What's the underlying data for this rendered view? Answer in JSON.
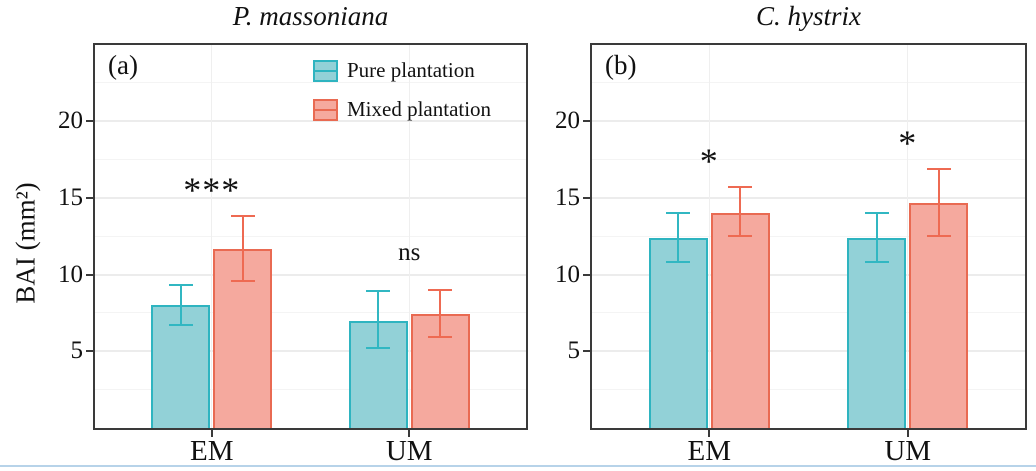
{
  "figure": {
    "ylabel": "BAI (mm²)",
    "colors": {
      "pure_fill": "#92d1d7",
      "pure_stroke": "#2eb4c0",
      "pure_error": "#31b7c2",
      "mixed_fill": "#f5a99e",
      "mixed_stroke": "#e96a52",
      "mixed_error": "#ee6a52",
      "axis": "#3a3a3a",
      "text": "#111111",
      "grid_major": "#ececec",
      "grid_minor": "#f4f4f4",
      "grid_vertical": "#efefef",
      "bottom_rule": "#b7d3e9"
    },
    "legend": {
      "location": "top-right inside panel a",
      "items": [
        {
          "label": "Pure plantation",
          "series": "pure"
        },
        {
          "label": "Mixed plantation",
          "series": "mixed"
        }
      ]
    }
  },
  "chart_data": [
    {
      "type": "bar",
      "panel_label": "(a)",
      "title": "P. massoniana",
      "xlabel": "",
      "ylabel": "BAI (mm²)",
      "ylim": [
        0,
        25
      ],
      "yticks": [
        5,
        10,
        15,
        20
      ],
      "grid": "faint horizontal major+minor gridlines, faint vertical gridline at each category",
      "legend_position": "top-right inside panel",
      "categories": [
        "EM",
        "UM"
      ],
      "series": [
        {
          "name": "Pure plantation",
          "values": [
            8.0,
            7.0
          ],
          "err_low": [
            6.7,
            5.2
          ],
          "err_high": [
            9.3,
            8.9
          ]
        },
        {
          "name": "Mixed plantation",
          "values": [
            11.7,
            7.4
          ],
          "err_low": [
            9.6,
            5.9
          ],
          "err_high": [
            13.8,
            9.0
          ]
        }
      ],
      "significance": [
        "***",
        "ns"
      ]
    },
    {
      "type": "bar",
      "panel_label": "(b)",
      "title": "C. hystrix",
      "xlabel": "",
      "ylabel": "",
      "ylim": [
        0,
        25
      ],
      "yticks": [
        5,
        10,
        15,
        20
      ],
      "grid": "faint horizontal major+minor gridlines, faint vertical gridline at each category",
      "categories": [
        "EM",
        "UM"
      ],
      "series": [
        {
          "name": "Pure plantation",
          "values": [
            12.4,
            12.4
          ],
          "err_low": [
            10.8,
            10.8
          ],
          "err_high": [
            14.0,
            14.0
          ]
        },
        {
          "name": "Mixed plantation",
          "values": [
            14.0,
            14.7
          ],
          "err_low": [
            12.5,
            12.5
          ],
          "err_high": [
            15.7,
            16.9
          ]
        }
      ],
      "significance": [
        "*",
        "*"
      ]
    }
  ]
}
